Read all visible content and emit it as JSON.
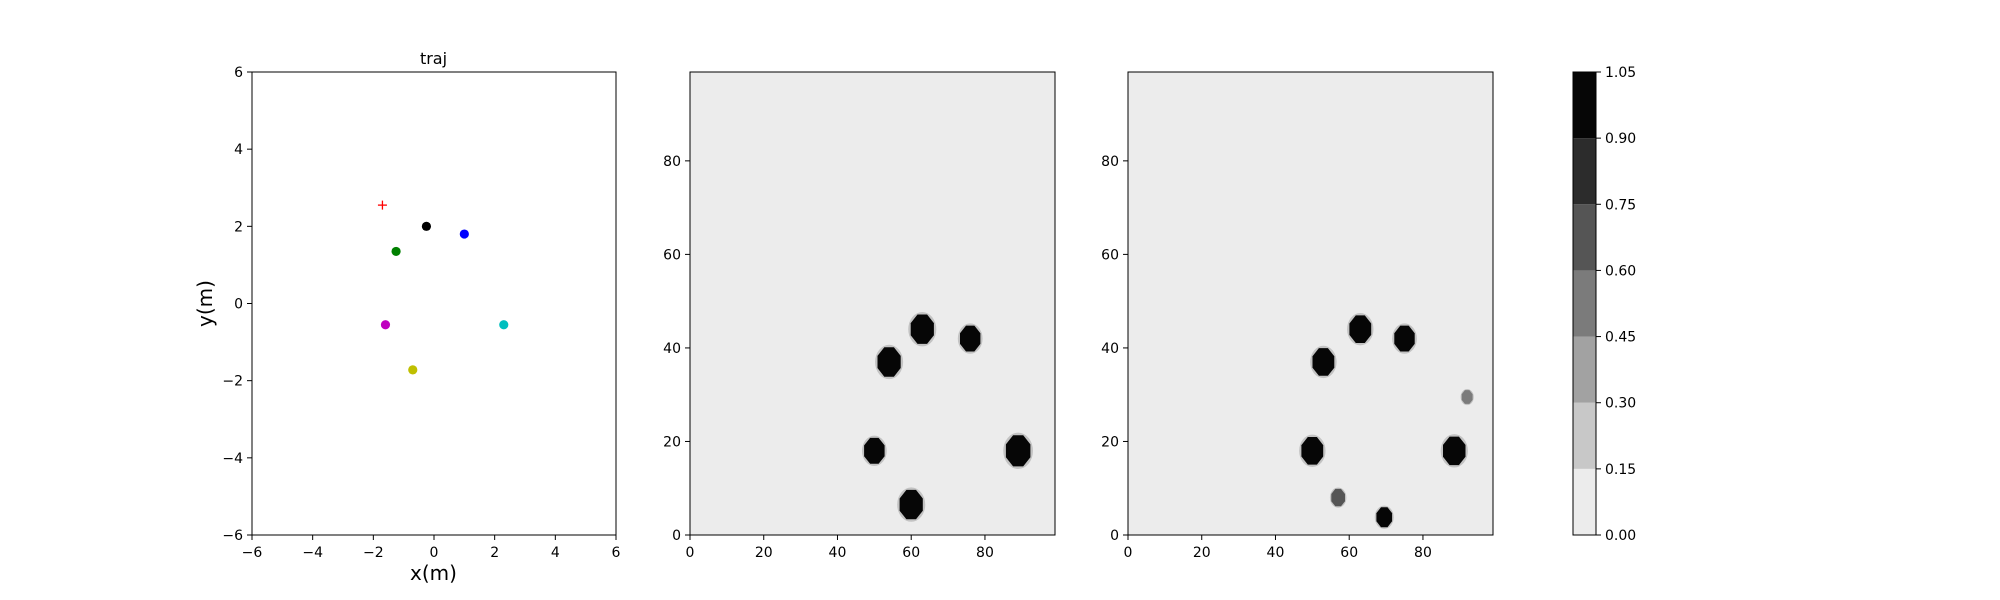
{
  "chart_data": [
    {
      "type": "scatter",
      "title": "traj",
      "xlabel": "x(m)",
      "ylabel": "y(m)",
      "xlim": [
        -6,
        6
      ],
      "ylim": [
        -6,
        6
      ],
      "xticks": [
        "−6",
        "−4",
        "−2",
        "0",
        "2",
        "4",
        "6"
      ],
      "yticks": [
        "−6",
        "−4",
        "−2",
        "0",
        "2",
        "4",
        "6"
      ],
      "grid": false,
      "points": [
        {
          "x": 1.0,
          "y": 1.8,
          "color": "#0000ff",
          "marker": "circle"
        },
        {
          "x": -0.25,
          "y": 2.0,
          "color": "#000000",
          "marker": "circle"
        },
        {
          "x": -1.25,
          "y": 1.35,
          "color": "#008000",
          "marker": "circle"
        },
        {
          "x": -1.6,
          "y": -0.55,
          "color": "#bf00bf",
          "marker": "circle"
        },
        {
          "x": -0.7,
          "y": -1.72,
          "color": "#bfbf00",
          "marker": "circle"
        },
        {
          "x": 2.3,
          "y": -0.55,
          "color": "#00bfbf",
          "marker": "circle"
        },
        {
          "x": -1.7,
          "y": 2.55,
          "color": "#ff0000",
          "marker": "plus"
        }
      ]
    },
    {
      "type": "heatmap",
      "title": "",
      "xlim": [
        0,
        99
      ],
      "ylim": [
        0,
        99
      ],
      "xticks": [
        "0",
        "20",
        "40",
        "60",
        "80"
      ],
      "yticks": [
        "0",
        "20",
        "40",
        "60",
        "80"
      ],
      "background_value": 0.0,
      "blobs": [
        {
          "x": 63,
          "y": 44,
          "r": 3.4,
          "value": 1.0
        },
        {
          "x": 76,
          "y": 42,
          "r": 3.0,
          "value": 1.0
        },
        {
          "x": 54,
          "y": 37,
          "r": 3.4,
          "value": 1.0
        },
        {
          "x": 50,
          "y": 18,
          "r": 3.0,
          "value": 1.0
        },
        {
          "x": 89,
          "y": 18,
          "r": 3.6,
          "value": 1.0
        },
        {
          "x": 60,
          "y": 6.5,
          "r": 3.4,
          "value": 1.0
        }
      ]
    },
    {
      "type": "heatmap",
      "title": "",
      "xlim": [
        0,
        99
      ],
      "ylim": [
        0,
        99
      ],
      "xticks": [
        "0",
        "20",
        "40",
        "60",
        "80"
      ],
      "yticks": [
        "0",
        "20",
        "40",
        "60",
        "80"
      ],
      "background_value": 0.0,
      "blobs": [
        {
          "x": 63,
          "y": 44,
          "r": 3.2,
          "value": 1.0
        },
        {
          "x": 75,
          "y": 42,
          "r": 3.0,
          "value": 1.0
        },
        {
          "x": 53,
          "y": 37,
          "r": 3.2,
          "value": 1.0
        },
        {
          "x": 50,
          "y": 18,
          "r": 3.2,
          "value": 1.0
        },
        {
          "x": 88.5,
          "y": 18,
          "r": 3.3,
          "value": 1.0
        },
        {
          "x": 92,
          "y": 29.5,
          "r": 1.6,
          "value": 0.45
        },
        {
          "x": 57,
          "y": 8,
          "r": 2.0,
          "value": 0.6
        },
        {
          "x": 69.5,
          "y": 3.8,
          "r": 2.3,
          "value": 0.9
        }
      ]
    }
  ],
  "colorbar": {
    "ticks": [
      "0.00",
      "0.15",
      "0.30",
      "0.45",
      "0.60",
      "0.75",
      "0.90",
      "1.05"
    ],
    "levels": [
      0.0,
      0.15,
      0.3,
      0.45,
      0.6,
      0.75,
      0.9,
      1.05
    ],
    "colors": [
      "#ececec",
      "#c8c8c8",
      "#a2a2a2",
      "#7b7b7b",
      "#555555",
      "#2c2c2c",
      "#060606"
    ]
  }
}
